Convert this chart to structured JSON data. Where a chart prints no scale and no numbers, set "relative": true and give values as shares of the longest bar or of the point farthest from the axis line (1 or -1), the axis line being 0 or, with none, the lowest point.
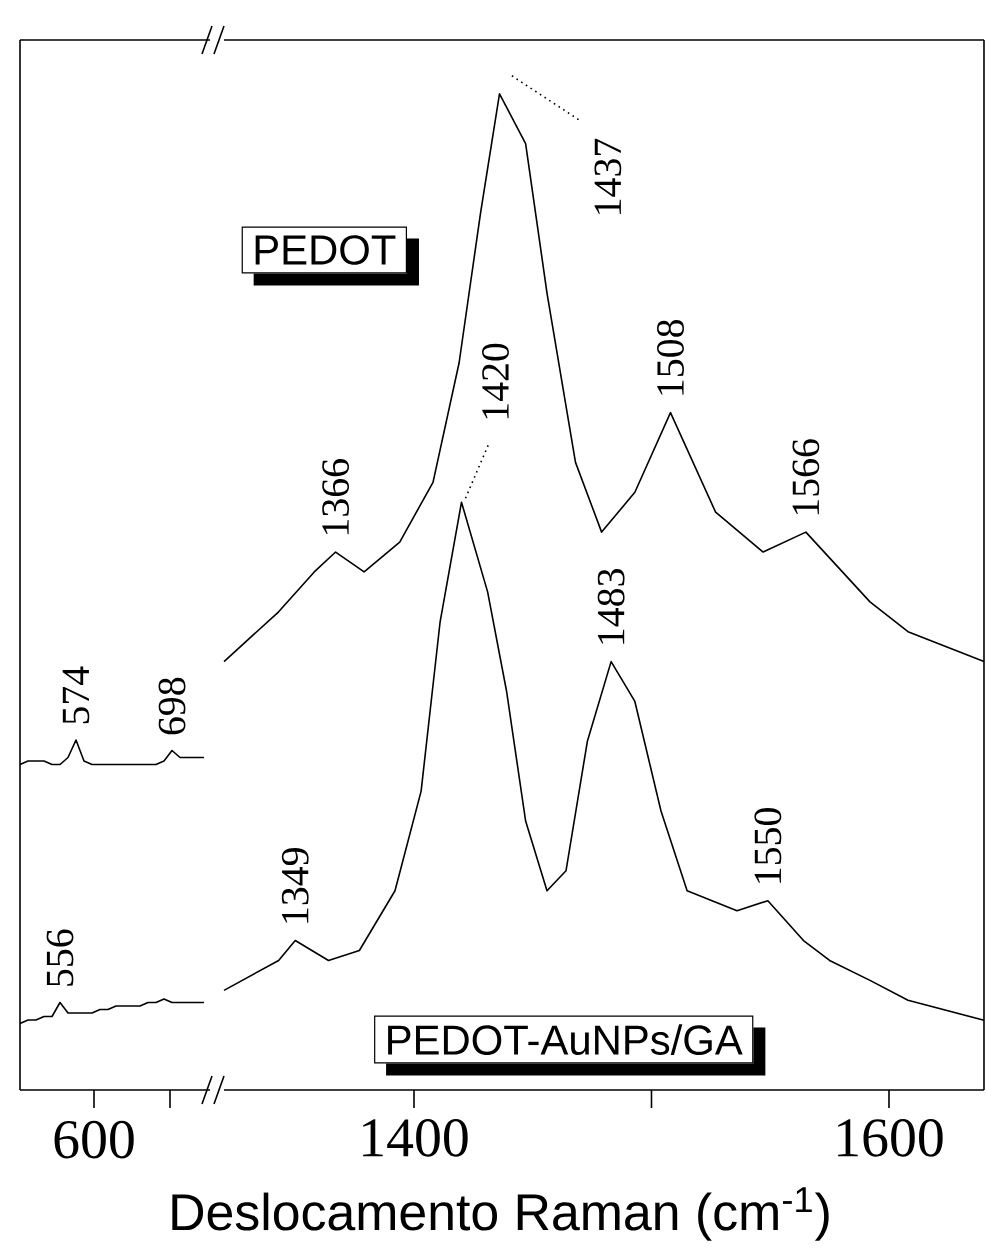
{
  "chart_data": [
    {
      "type": "line",
      "relative": true,
      "tick_labels": false,
      "categories": [
        null,
        null,
        null,
        null,
        null,
        null,
        null,
        null,
        null,
        null,
        null,
        null,
        null,
        null,
        null,
        null,
        null,
        null,
        null,
        null,
        null,
        null,
        null,
        null
      ],
      "series": [
        {
          "color": "#000000",
          "values": [
            0.93,
            0.94,
            0.94,
            0.94,
            0.93,
            0.93,
            0.95,
            1.0,
            0.94,
            0.93,
            0.93,
            0.93,
            0.93,
            0.93,
            0.93,
            0.93,
            0.93,
            0.93,
            0.94,
            0.97,
            0.95,
            0.95,
            0.95,
            0.95
          ]
        },
        {
          "color": "#000000",
          "values": [
            0.19,
            0.2,
            0.2,
            0.21,
            0.21,
            0.25,
            0.22,
            0.22,
            0.22,
            0.22,
            0.23,
            0.23,
            0.24,
            0.24,
            0.24,
            0.24,
            0.25,
            0.25,
            0.26,
            0.25,
            0.25,
            0.25,
            0.25,
            0.25
          ]
        }
      ],
      "annotations": [
        "600",
        "574",
        "698",
        "556"
      ]
    },
    {
      "type": "line",
      "relative": true,
      "tick_labels": "x",
      "xlabel": "Deslocamento Raman (cm$^{-1}$)",
      "xlim": [
        1320,
        1640
      ],
      "xticks": [
        1400,
        {
          "value": 1500,
          "label": null
        },
        1600
      ],
      "series": [
        {
          "name": "PEDOT",
          "color": "#000000",
          "x": [
            1320,
            1343,
            1358,
            1367,
            1379,
            1394,
            1408,
            1419,
            1428,
            1436,
            1447,
            1456,
            1468,
            1479,
            1493,
            1508,
            1527,
            1547,
            1565,
            1592,
            1608,
            1640
          ],
          "values": [
            0.43,
            0.48,
            0.52,
            0.54,
            0.52,
            0.55,
            0.61,
            0.73,
            0.88,
            1.0,
            0.95,
            0.8,
            0.63,
            0.56,
            0.6,
            0.68,
            0.58,
            0.54,
            0.56,
            0.49,
            0.46,
            0.43
          ]
        },
        {
          "name": "PEDOT-AuNPs/GA",
          "color": "#000000",
          "x": [
            1320,
            1343,
            1350,
            1364,
            1377,
            1392,
            1403,
            1411,
            1420,
            1431,
            1439,
            1447,
            1456,
            1464,
            1473,
            1483,
            1493,
            1504,
            1515,
            1536,
            1549,
            1564,
            1575,
            1592,
            1608,
            1640
          ],
          "values": [
            0.1,
            0.13,
            0.15,
            0.13,
            0.14,
            0.2,
            0.3,
            0.47,
            0.59,
            0.5,
            0.4,
            0.27,
            0.2,
            0.22,
            0.35,
            0.43,
            0.39,
            0.28,
            0.2,
            0.18,
            0.19,
            0.15,
            0.13,
            0.11,
            0.09,
            0.07
          ]
        }
      ],
      "annotations": [
        {
          "text": "1366",
          "x": 1367,
          "y": 0.54
        },
        {
          "text": "1437",
          "x": 1437,
          "y": 1.0
        },
        {
          "text": "1508",
          "x": 1508,
          "y": 0.68
        },
        {
          "text": "1566",
          "x": 1565,
          "y": 0.56
        },
        {
          "text": "1420",
          "x": 1420,
          "y": 0.59
        },
        {
          "text": "1483",
          "x": 1483,
          "y": 0.43
        },
        {
          "text": "1349",
          "x": 1350,
          "y": 0.15
        },
        {
          "text": "1550",
          "x": 1549,
          "y": 0.19
        }
      ]
    }
  ]
}
